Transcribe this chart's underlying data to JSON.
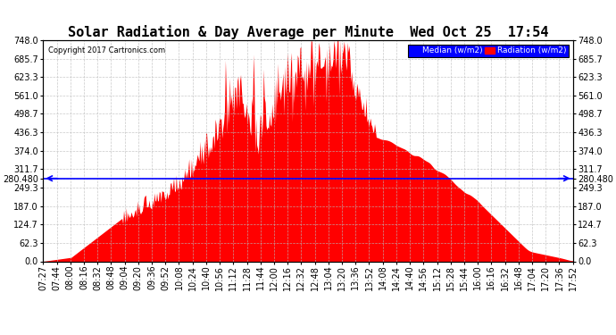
{
  "title": "Solar Radiation & Day Average per Minute  Wed Oct 25  17:54",
  "copyright": "Copyright 2017 Cartronics.com",
  "legend_median": "Median (w/m2)",
  "legend_radiation": "Radiation (w/m2)",
  "ymax": 748.0,
  "ymin": 0.0,
  "median_value": 280.48,
  "yticks": [
    748.0,
    685.7,
    623.3,
    561.0,
    498.7,
    436.3,
    374.0,
    311.7,
    280.48,
    249.3,
    187.0,
    124.7,
    62.3,
    0.0
  ],
  "ytick_labels_left": [
    "748.0",
    "685.7",
    "623.3",
    "561.0",
    "498.7",
    "436.3",
    "374.0",
    "311.7",
    "280.480",
    "249.3",
    "187.0",
    "124.7",
    "62.3",
    "0.0"
  ],
  "ytick_labels_right": [
    "748.0",
    "685.7",
    "623.3",
    "561.0",
    "498.7",
    "436.3",
    "374.0",
    "311.7",
    "280.480",
    "249.3",
    "187.0",
    "124.7",
    "62.3",
    "0.0"
  ],
  "background_color": "#ffffff",
  "fill_color": "#ff0000",
  "median_color": "#0000ff",
  "grid_color": "#bbbbbb",
  "title_fontsize": 11,
  "tick_fontsize": 7,
  "xtick_labels": [
    "07:27",
    "07:44",
    "08:00",
    "08:16",
    "08:32",
    "08:48",
    "09:04",
    "09:20",
    "09:36",
    "09:52",
    "10:08",
    "10:24",
    "10:40",
    "10:56",
    "11:12",
    "11:28",
    "11:44",
    "12:00",
    "12:16",
    "12:32",
    "12:48",
    "13:04",
    "13:20",
    "13:36",
    "13:52",
    "14:08",
    "14:24",
    "14:40",
    "14:56",
    "15:12",
    "15:28",
    "15:44",
    "16:00",
    "16:16",
    "16:32",
    "16:48",
    "17:04",
    "17:20",
    "17:36",
    "17:52"
  ]
}
